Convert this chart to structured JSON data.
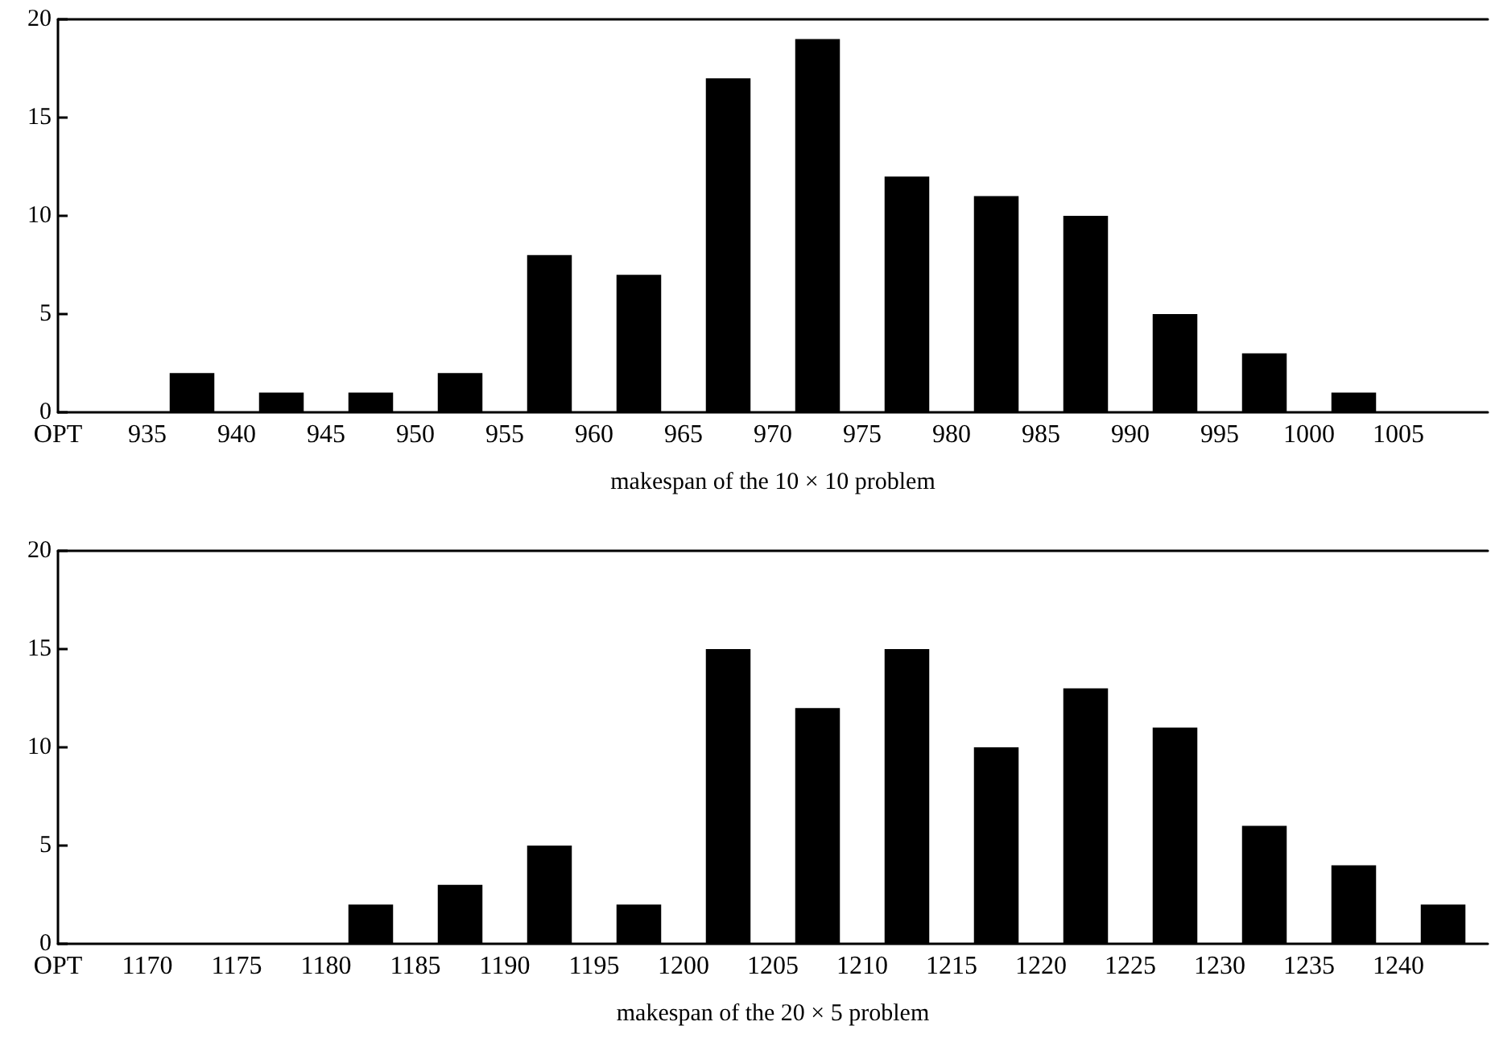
{
  "chart_data": [
    {
      "type": "bar",
      "xlabel": "makespan of the 10 × 10 problem",
      "x": [
        937.5,
        942.5,
        947.5,
        952.5,
        957.5,
        962.5,
        967.5,
        972.5,
        977.5,
        982.5,
        987.5,
        992.5,
        997.5,
        1002.5
      ],
      "values": [
        2,
        1,
        1,
        2,
        8,
        7,
        17,
        19,
        12,
        11,
        10,
        5,
        3,
        1
      ],
      "color": "#000000",
      "xlim": [
        930,
        1010
      ],
      "xticks": [
        {
          "value": 930,
          "label": "OPT"
        },
        935,
        940,
        945,
        950,
        955,
        960,
        965,
        970,
        975,
        980,
        985,
        990,
        995,
        1000,
        1005
      ],
      "ylim": [
        0,
        20
      ],
      "yticks": [
        0,
        5,
        10,
        15,
        20
      ],
      "grid": false
    },
    {
      "type": "bar",
      "xlabel": "makespan of the 20 × 5 problem",
      "x": [
        1182.5,
        1187.5,
        1192.5,
        1197.5,
        1202.5,
        1207.5,
        1212.5,
        1217.5,
        1222.5,
        1227.5,
        1232.5,
        1237.5,
        1242.5
      ],
      "values": [
        2,
        3,
        5,
        2,
        15,
        12,
        15,
        10,
        13,
        11,
        6,
        4,
        2
      ],
      "color": "#000000",
      "xlim": [
        1165,
        1245
      ],
      "xticks": [
        {
          "value": 1165,
          "label": "OPT"
        },
        1170,
        1175,
        1180,
        1185,
        1190,
        1195,
        1200,
        1205,
        1210,
        1215,
        1220,
        1225,
        1230,
        1235,
        1240
      ],
      "ylim": [
        0,
        20
      ],
      "yticks": [
        0,
        5,
        10,
        15,
        20
      ],
      "grid": false
    }
  ]
}
